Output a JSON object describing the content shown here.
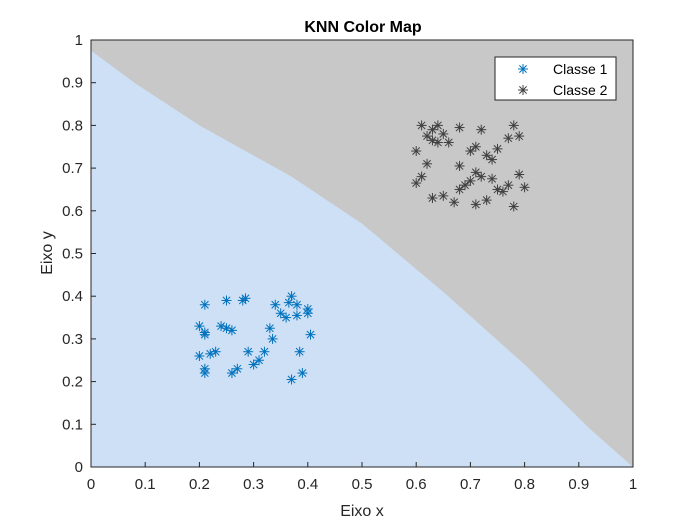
{
  "chart_data": {
    "type": "scatter",
    "title": "KNN Color Map",
    "xlabel": "Eixo x",
    "ylabel": "Eixo y",
    "xlim": [
      0,
      1
    ],
    "ylim": [
      0,
      1
    ],
    "xticks": [
      "0",
      "0.1",
      "0.2",
      "0.3",
      "0.4",
      "0.5",
      "0.6",
      "0.7",
      "0.8",
      "0.9",
      "1"
    ],
    "yticks": [
      "0",
      "0.1",
      "0.2",
      "0.3",
      "0.4",
      "0.5",
      "0.6",
      "0.7",
      "0.8",
      "0.9",
      "1"
    ],
    "grid": false,
    "legend_position": "top-right",
    "regions": [
      {
        "class": "Classe 1",
        "color": "#cde0f5",
        "boundary": [
          [
            0,
            0.975
          ],
          [
            0.08,
            0.9
          ],
          [
            0.2,
            0.8
          ],
          [
            0.37,
            0.68
          ],
          [
            0.5,
            0.57
          ],
          [
            0.65,
            0.41
          ],
          [
            0.8,
            0.24
          ],
          [
            0.92,
            0.09
          ],
          [
            1,
            0
          ]
        ]
      },
      {
        "class": "Classe 2",
        "color": "#c8c8c8"
      }
    ],
    "series": [
      {
        "name": "Classe 1",
        "color": "#0072bd",
        "marker": "asterisk",
        "points": [
          [
            0.21,
            0.38
          ],
          [
            0.2,
            0.33
          ],
          [
            0.21,
            0.31
          ],
          [
            0.2,
            0.26
          ],
          [
            0.21,
            0.22
          ],
          [
            0.21,
            0.23
          ],
          [
            0.22,
            0.265
          ],
          [
            0.23,
            0.27
          ],
          [
            0.24,
            0.33
          ],
          [
            0.25,
            0.325
          ],
          [
            0.25,
            0.39
          ],
          [
            0.26,
            0.32
          ],
          [
            0.26,
            0.22
          ],
          [
            0.27,
            0.23
          ],
          [
            0.28,
            0.39
          ],
          [
            0.29,
            0.27
          ],
          [
            0.3,
            0.24
          ],
          [
            0.31,
            0.25
          ],
          [
            0.32,
            0.27
          ],
          [
            0.33,
            0.325
          ],
          [
            0.34,
            0.38
          ],
          [
            0.335,
            0.3
          ],
          [
            0.35,
            0.36
          ],
          [
            0.36,
            0.35
          ],
          [
            0.365,
            0.385
          ],
          [
            0.37,
            0.4
          ],
          [
            0.38,
            0.355
          ],
          [
            0.38,
            0.38
          ],
          [
            0.385,
            0.27
          ],
          [
            0.39,
            0.22
          ],
          [
            0.4,
            0.36
          ],
          [
            0.4,
            0.37
          ],
          [
            0.405,
            0.31
          ],
          [
            0.37,
            0.205
          ],
          [
            0.285,
            0.395
          ],
          [
            0.21,
            0.315
          ]
        ]
      },
      {
        "name": "Classe 2",
        "color": "#404040",
        "marker": "asterisk",
        "points": [
          [
            0.61,
            0.8
          ],
          [
            0.62,
            0.775
          ],
          [
            0.63,
            0.79
          ],
          [
            0.64,
            0.8
          ],
          [
            0.65,
            0.78
          ],
          [
            0.66,
            0.76
          ],
          [
            0.68,
            0.795
          ],
          [
            0.7,
            0.74
          ],
          [
            0.71,
            0.75
          ],
          [
            0.72,
            0.79
          ],
          [
            0.73,
            0.73
          ],
          [
            0.74,
            0.72
          ],
          [
            0.75,
            0.745
          ],
          [
            0.77,
            0.77
          ],
          [
            0.78,
            0.8
          ],
          [
            0.79,
            0.775
          ],
          [
            0.6,
            0.74
          ],
          [
            0.62,
            0.71
          ],
          [
            0.61,
            0.68
          ],
          [
            0.6,
            0.665
          ],
          [
            0.63,
            0.63
          ],
          [
            0.65,
            0.635
          ],
          [
            0.67,
            0.62
          ],
          [
            0.68,
            0.65
          ],
          [
            0.69,
            0.66
          ],
          [
            0.7,
            0.67
          ],
          [
            0.71,
            0.69
          ],
          [
            0.72,
            0.68
          ],
          [
            0.73,
            0.625
          ],
          [
            0.75,
            0.65
          ],
          [
            0.76,
            0.645
          ],
          [
            0.77,
            0.66
          ],
          [
            0.78,
            0.61
          ],
          [
            0.79,
            0.685
          ],
          [
            0.8,
            0.655
          ],
          [
            0.74,
            0.675
          ],
          [
            0.64,
            0.76
          ],
          [
            0.68,
            0.705
          ],
          [
            0.71,
            0.615
          ],
          [
            0.63,
            0.765
          ]
        ]
      }
    ]
  }
}
